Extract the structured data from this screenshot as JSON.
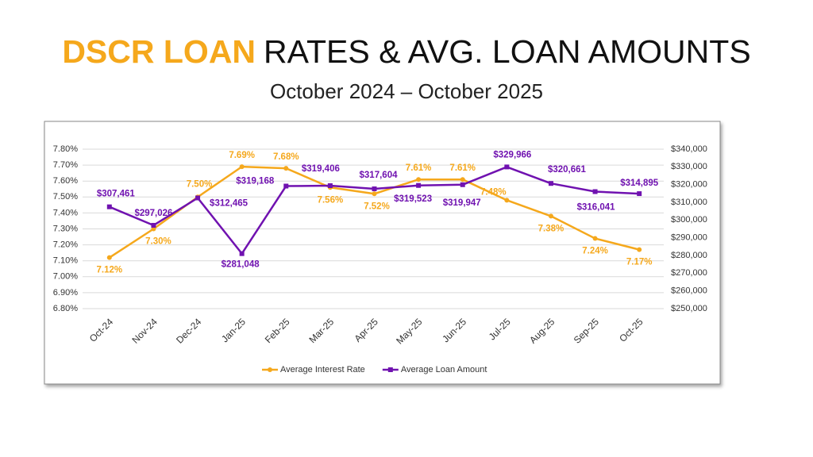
{
  "chart_data": {
    "type": "line",
    "title_highlight": "DSCR LOAN",
    "title": "RATES & AVG. LOAN AMOUNTS",
    "subtitle": "October 2024 – October 2025",
    "categories": [
      "Oct-24",
      "Nov-24",
      "Dec-24",
      "Jan-25",
      "Feb-25",
      "Mar-25",
      "Apr-25",
      "May-25",
      "Jun-25",
      "Jul-25",
      "Aug-25",
      "Sep-25",
      "Oct-25"
    ],
    "series": [
      {
        "name": "Average Interest Rate",
        "color": "#f5a81c",
        "axis": "y",
        "values": [
          7.12,
          7.3,
          7.5,
          7.69,
          7.68,
          7.56,
          7.52,
          7.61,
          7.61,
          7.48,
          7.38,
          7.24,
          7.17
        ],
        "value_labels": [
          "7.12%",
          "7.30%",
          "7.50%",
          "7.69%",
          "7.68%",
          "7.56%",
          "7.52%",
          "7.61%",
          "7.61%",
          "7.48%",
          "7.38%",
          "7.24%",
          "7.17%"
        ]
      },
      {
        "name": "Average Loan Amount",
        "color": "#7012b0",
        "axis": "y2",
        "values": [
          307461,
          297026,
          312465,
          281048,
          319168,
          319406,
          317604,
          319523,
          319947,
          329966,
          320661,
          316041,
          314895
        ],
        "value_labels": [
          "$307,461",
          "$297,026",
          "$312,465",
          "$281,048",
          "$319,168",
          "$319,406",
          "$317,604",
          "$319,523",
          "$319,947",
          "$329,966",
          "$320,661",
          "$316,041",
          "$314,895"
        ]
      }
    ],
    "ylim": [
      6.8,
      7.8
    ],
    "yticks": [
      {
        "value": 6.8,
        "label": "6.80%"
      },
      {
        "value": 6.9,
        "label": "6.90%"
      },
      {
        "value": 7.0,
        "label": "7.00%"
      },
      {
        "value": 7.1,
        "label": "7.10%"
      },
      {
        "value": 7.2,
        "label": "7.20%"
      },
      {
        "value": 7.3,
        "label": "7.30%"
      },
      {
        "value": 7.4,
        "label": "7.40%"
      },
      {
        "value": 7.5,
        "label": "7.50%"
      },
      {
        "value": 7.6,
        "label": "7.60%"
      },
      {
        "value": 7.7,
        "label": "7.70%"
      },
      {
        "value": 7.8,
        "label": "7.80%"
      }
    ],
    "y2lim": [
      250000,
      340000
    ],
    "y2ticks": [
      {
        "value": 250000,
        "label": "$250,000"
      },
      {
        "value": 260000,
        "label": "$260,000"
      },
      {
        "value": 270000,
        "label": "$270,000"
      },
      {
        "value": 280000,
        "label": "$280,000"
      },
      {
        "value": 290000,
        "label": "$290,000"
      },
      {
        "value": 300000,
        "label": "$300,000"
      },
      {
        "value": 310000,
        "label": "$310,000"
      },
      {
        "value": 320000,
        "label": "$320,000"
      },
      {
        "value": 330000,
        "label": "$330,000"
      },
      {
        "value": 340000,
        "label": "$340,000"
      }
    ],
    "grid": true,
    "legend": "bottom"
  }
}
